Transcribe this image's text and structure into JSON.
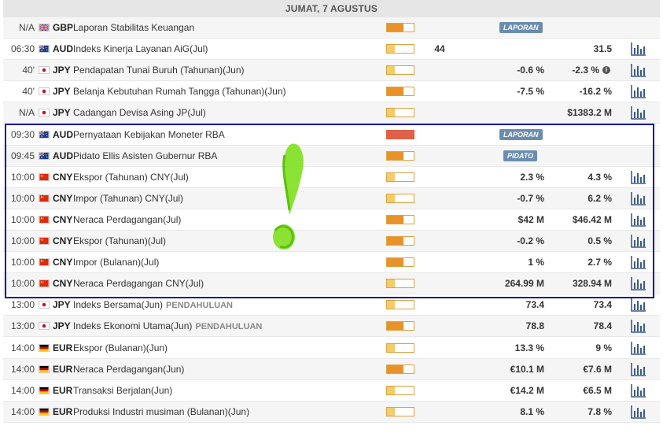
{
  "date_header": "JUMAT, 7 AGUSTUS",
  "colors": {
    "importance_medium": "#e8922a",
    "importance_low": "#f3cd6a",
    "importance_high": "#e0604a",
    "badge": "#6b8cb0",
    "highlight_border": "#1010a0",
    "scribble": "#7ee01e"
  },
  "events": [
    {
      "time": "N/A",
      "flag": "gb",
      "currency": "GBP",
      "event": "Laporan Stabilitas Keuangan",
      "importance": "medium",
      "badge": "LAPORAN"
    },
    {
      "time": "06:30",
      "flag": "au",
      "currency": "AUD",
      "event": "Indeks Kinerja Layanan AiG(Jul)",
      "importance": "low",
      "actual": "44",
      "previous": "31.5",
      "chart": true
    },
    {
      "time": "40'",
      "flag": "jp",
      "currency": "JPY",
      "event": "Pendapatan Tunai Buruh (Tahunan)(Jun)",
      "importance": "low",
      "forecast": "-0.6 %",
      "previous": "-2.3 %",
      "info": true,
      "chart": true
    },
    {
      "time": "40'",
      "flag": "jp",
      "currency": "JPY",
      "event": "Belanja Kebutuhan Rumah Tangga (Tahunan)(Jun)",
      "importance": "medium",
      "forecast": "-7.5 %",
      "previous": "-16.2 %",
      "chart": true
    },
    {
      "time": "N/A",
      "flag": "jp",
      "currency": "JPY",
      "event": "Cadangan Devisa Asing JP(Jul)",
      "importance": "low",
      "previous": "$1383.2 M",
      "chart": true
    },
    {
      "time": "09:30",
      "flag": "au",
      "currency": "AUD",
      "event": "Pernyataan Kebijakan Moneter RBA",
      "importance": "high",
      "badge": "LAPORAN"
    },
    {
      "time": "09:45",
      "flag": "au",
      "currency": "AUD",
      "event": "Pidato Ellis Asisten Gubernur RBA",
      "importance": "medium",
      "badge": "PIDATO"
    },
    {
      "time": "10:00",
      "flag": "cn",
      "currency": "CNY",
      "event": "Ekspor (Tahunan) CNY(Jul)",
      "importance": "low",
      "forecast": "2.3 %",
      "previous": "4.3 %",
      "chart": true
    },
    {
      "time": "10:00",
      "flag": "cn",
      "currency": "CNY",
      "event": "Impor (Tahunan) CNY(Jul)",
      "importance": "low",
      "forecast": "-0.7 %",
      "previous": "6.2 %",
      "chart": true
    },
    {
      "time": "10:00",
      "flag": "cn",
      "currency": "CNY",
      "event": "Neraca Perdagangan(Jul)",
      "importance": "medium",
      "forecast": "$42 M",
      "previous": "$46.42 M",
      "chart": true
    },
    {
      "time": "10:00",
      "flag": "cn",
      "currency": "CNY",
      "event": "Ekspor (Tahunan)(Jul)",
      "importance": "medium",
      "forecast": "-0.2 %",
      "previous": "0.5 %",
      "chart": true
    },
    {
      "time": "10:00",
      "flag": "cn",
      "currency": "CNY",
      "event": "Impor (Bulanan)(Jul)",
      "importance": "medium",
      "forecast": "1 %",
      "previous": "2.7 %",
      "chart": true
    },
    {
      "time": "10:00",
      "flag": "cn",
      "currency": "CNY",
      "event": "Neraca Perdagangan CNY(Jul)",
      "importance": "low",
      "forecast": "264.99 M",
      "previous": "328.94 M",
      "chart": true
    },
    {
      "time": "13:00",
      "flag": "jp",
      "currency": "JPY",
      "event": "Indeks Bersama(Jun)",
      "tag": "PENDAHULUAN",
      "importance": "low",
      "forecast": "73.4",
      "previous": "73.4",
      "chart": true
    },
    {
      "time": "13:00",
      "flag": "jp",
      "currency": "JPY",
      "event": "Indeks Ekonomi Utama(Jun)",
      "tag": "PENDAHULUAN",
      "importance": "medium",
      "forecast": "78.8",
      "previous": "78.4",
      "chart": true
    },
    {
      "time": "14:00",
      "flag": "de",
      "currency": "EUR",
      "event": "Ekspor (Bulanan)(Jun)",
      "importance": "low",
      "forecast": "13.3 %",
      "previous": "9 %",
      "chart": true
    },
    {
      "time": "14:00",
      "flag": "de",
      "currency": "EUR",
      "event": "Neraca Perdagangan(Jun)",
      "importance": "medium",
      "forecast": "€10.1 M",
      "previous": "€7.6 M",
      "chart": true
    },
    {
      "time": "14:00",
      "flag": "de",
      "currency": "EUR",
      "event": "Transaksi Berjalan(Jun)",
      "importance": "low",
      "forecast": "€14.2 M",
      "previous": "€6.5 M",
      "chart": true
    },
    {
      "time": "14:00",
      "flag": "de",
      "currency": "EUR",
      "event": "Produksi Industri musiman (Bulanan)(Jun)",
      "importance": "low",
      "forecast": "8.1 %",
      "previous": "7.8 %",
      "chart": true
    }
  ]
}
